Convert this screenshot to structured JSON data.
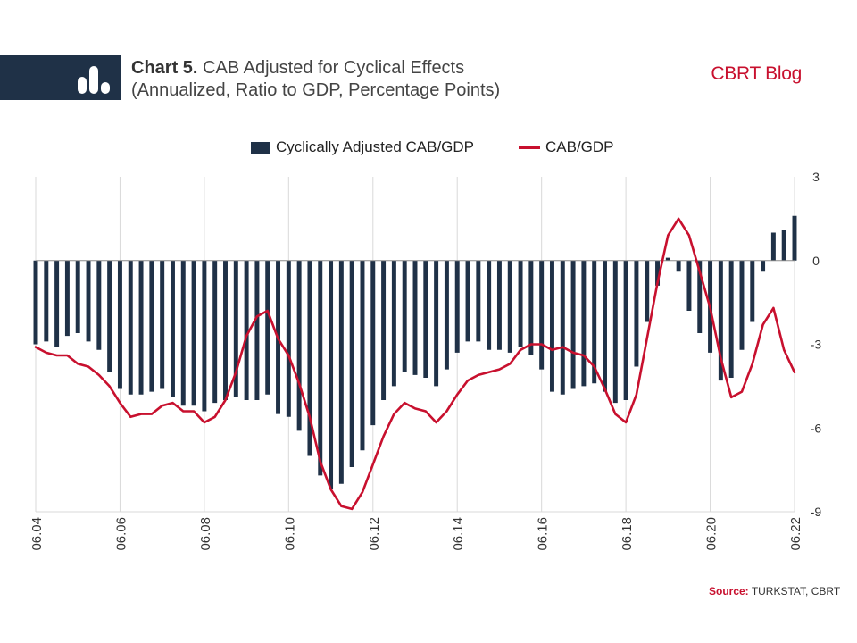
{
  "header": {
    "chart_number": "Chart 5.",
    "title_rest": "CAB Adjusted for Cyclical Effects",
    "subtitle": "(Annualized, Ratio to GDP, Percentage Points)",
    "brand": "CBRT Blog"
  },
  "source": {
    "label": "Source:",
    "text": "TURKSTAT, CBRT"
  },
  "colors": {
    "bar": "#1f3147",
    "line": "#c8102e",
    "grid": "#d9d9d9",
    "band": "#1f3147"
  },
  "icons": {
    "logo": "bar-chart-icon"
  },
  "chart_data": {
    "type": "bar",
    "x_tick_labels": [
      "06.04",
      "06.06",
      "06.08",
      "06.10",
      "06.12",
      "06.14",
      "06.16",
      "06.18",
      "06.20",
      "06.22"
    ],
    "x_range": [
      "2004-06",
      "2022-06"
    ],
    "y_axis_side": "right",
    "ylim": [
      -9,
      3
    ],
    "y_ticks": [
      3,
      0,
      -3,
      -6,
      -9
    ],
    "grid": "vertical",
    "legend_position": "top",
    "series": [
      {
        "name": "Cyclically Adjusted CAB/GDP",
        "kind": "bar",
        "x_start": "2004-06",
        "step_months": 3,
        "values": [
          -3.0,
          -2.9,
          -3.1,
          -2.7,
          -2.6,
          -2.9,
          -3.2,
          -4.0,
          -4.6,
          -4.8,
          -4.8,
          -4.7,
          -4.6,
          -4.9,
          -5.2,
          -5.2,
          -5.4,
          -5.1,
          -5.0,
          -4.9,
          -5.0,
          -5.0,
          -4.8,
          -5.5,
          -5.6,
          -6.1,
          -7.0,
          -7.7,
          -8.2,
          -8.0,
          -7.4,
          -6.8,
          -5.9,
          -5.0,
          -4.5,
          -4.0,
          -4.1,
          -4.2,
          -4.5,
          -3.9,
          -3.3,
          -2.9,
          -2.9,
          -3.2,
          -3.2,
          -3.3,
          -3.1,
          -3.4,
          -3.9,
          -4.7,
          -4.8,
          -4.6,
          -4.5,
          -4.4,
          -4.7,
          -5.1,
          -5.0,
          -3.8,
          -2.2,
          -0.9,
          0.1,
          -0.4,
          -1.8,
          -2.6,
          -3.3,
          -4.3,
          -4.2,
          -3.2,
          -2.2,
          -0.4,
          1.0,
          1.1,
          1.6
        ]
      },
      {
        "name": "CAB/GDP",
        "kind": "line",
        "points": [
          [
            "2004-06",
            -3.1
          ],
          [
            "2004-09",
            -3.3
          ],
          [
            "2004-12",
            -3.4
          ],
          [
            "2005-03",
            -3.4
          ],
          [
            "2005-06",
            -3.7
          ],
          [
            "2005-09",
            -3.8
          ],
          [
            "2005-12",
            -4.1
          ],
          [
            "2006-03",
            -4.5
          ],
          [
            "2006-06",
            -5.1
          ],
          [
            "2006-09",
            -5.6
          ],
          [
            "2006-12",
            -5.5
          ],
          [
            "2007-03",
            -5.5
          ],
          [
            "2007-06",
            -5.2
          ],
          [
            "2007-09",
            -5.1
          ],
          [
            "2007-12",
            -5.4
          ],
          [
            "2008-03",
            -5.4
          ],
          [
            "2008-06",
            -5.8
          ],
          [
            "2008-09",
            -5.6
          ],
          [
            "2008-12",
            -5.0
          ],
          [
            "2009-03",
            -4.0
          ],
          [
            "2009-06",
            -2.7
          ],
          [
            "2009-09",
            -2.0
          ],
          [
            "2009-12",
            -1.8
          ],
          [
            "2010-03",
            -2.8
          ],
          [
            "2010-06",
            -3.4
          ],
          [
            "2010-09",
            -4.4
          ],
          [
            "2010-12",
            -5.6
          ],
          [
            "2011-03",
            -7.2
          ],
          [
            "2011-06",
            -8.2
          ],
          [
            "2011-09",
            -8.8
          ],
          [
            "2011-12",
            -8.9
          ],
          [
            "2012-03",
            -8.3
          ],
          [
            "2012-06",
            -7.3
          ],
          [
            "2012-09",
            -6.3
          ],
          [
            "2012-12",
            -5.5
          ],
          [
            "2013-03",
            -5.1
          ],
          [
            "2013-06",
            -5.3
          ],
          [
            "2013-09",
            -5.4
          ],
          [
            "2013-12",
            -5.8
          ],
          [
            "2014-03",
            -5.4
          ],
          [
            "2014-06",
            -4.8
          ],
          [
            "2014-09",
            -4.3
          ],
          [
            "2014-12",
            -4.1
          ],
          [
            "2015-03",
            -4.0
          ],
          [
            "2015-06",
            -3.9
          ],
          [
            "2015-09",
            -3.7
          ],
          [
            "2015-12",
            -3.2
          ],
          [
            "2016-03",
            -3.0
          ],
          [
            "2016-06",
            -3.0
          ],
          [
            "2016-09",
            -3.2
          ],
          [
            "2016-12",
            -3.1
          ],
          [
            "2017-03",
            -3.3
          ],
          [
            "2017-06",
            -3.4
          ],
          [
            "2017-09",
            -3.8
          ],
          [
            "2017-12",
            -4.6
          ],
          [
            "2018-03",
            -5.5
          ],
          [
            "2018-06",
            -5.8
          ],
          [
            "2018-09",
            -4.8
          ],
          [
            "2018-12",
            -2.8
          ],
          [
            "2019-03",
            -0.8
          ],
          [
            "2019-06",
            0.9
          ],
          [
            "2019-09",
            1.5
          ],
          [
            "2019-12",
            0.9
          ],
          [
            "2020-03",
            -0.4
          ],
          [
            "2020-06",
            -1.7
          ],
          [
            "2020-09",
            -3.5
          ],
          [
            "2020-12",
            -4.9
          ],
          [
            "2021-03",
            -4.7
          ],
          [
            "2021-06",
            -3.7
          ],
          [
            "2021-09",
            -2.3
          ],
          [
            "2021-12",
            -1.7
          ],
          [
            "2022-03",
            -3.2
          ],
          [
            "2022-06",
            -4.0
          ]
        ]
      }
    ]
  }
}
